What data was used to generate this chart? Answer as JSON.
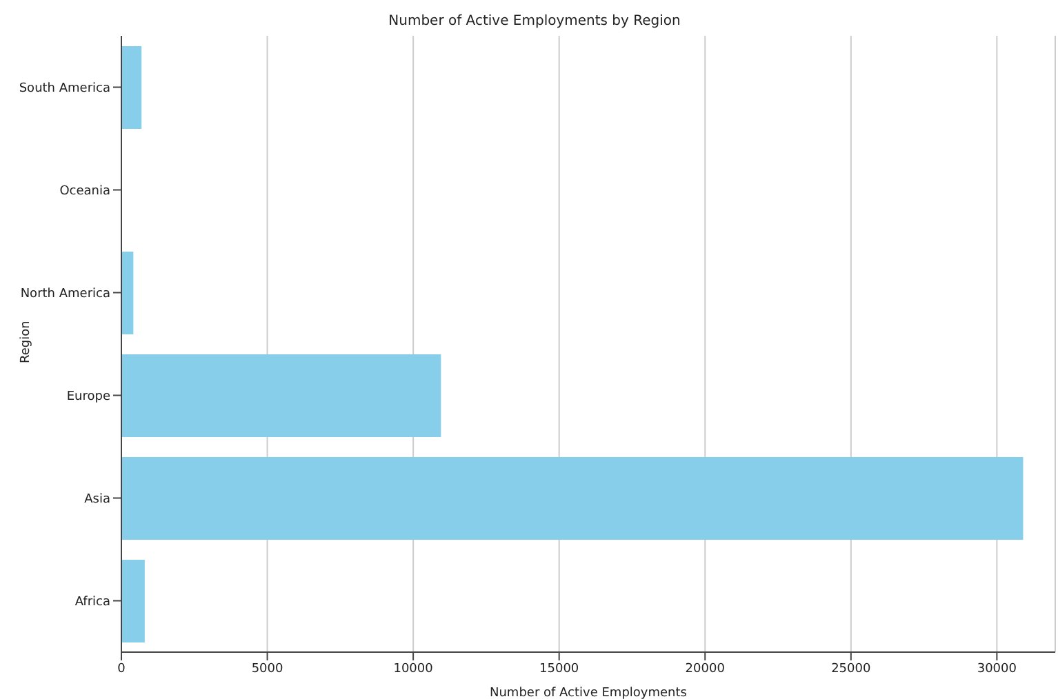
{
  "chart_data": {
    "type": "bar",
    "orientation": "horizontal",
    "title": "Number of Active Employments by Region",
    "xlabel": "Number of Active Employments",
    "ylabel": "Region",
    "categories": [
      "South America",
      "Oceania",
      "North America",
      "Europe",
      "Asia",
      "Africa"
    ],
    "values": [
      690,
      0,
      410,
      10950,
      30900,
      800
    ],
    "color": "#87ceeb",
    "xlim": [
      0,
      32000
    ],
    "xticks": [
      0,
      5000,
      10000,
      15000,
      20000,
      25000,
      30000
    ],
    "grid": "x"
  }
}
